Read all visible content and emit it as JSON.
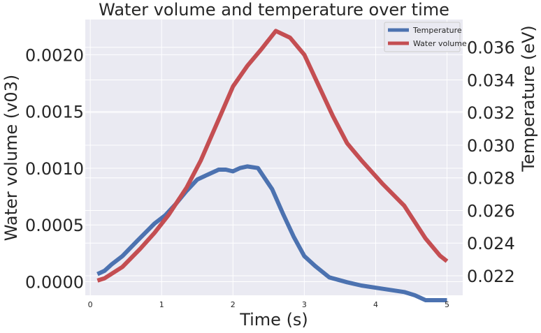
{
  "chart_data": {
    "type": "line",
    "title": "Water volume and temperature over time",
    "xlabel": "Time (s)",
    "ylabel_left": "Water volume (v03)",
    "ylabel_right": "Temperature (eV)",
    "xlim": [
      -0.07,
      5.22
    ],
    "ylim_left": [
      -0.00012,
      0.00231
    ],
    "ylim_right": [
      0.0208,
      0.0377
    ],
    "x_ticks": [
      0,
      1,
      2,
      3,
      4,
      5
    ],
    "x_tick_labels": [
      "0",
      "1",
      "2",
      "3",
      "4",
      "5"
    ],
    "y_left_ticks": [
      0.0,
      0.0005,
      0.001,
      0.0015,
      0.002
    ],
    "y_left_tick_labels": [
      "0.0000",
      "0.0005",
      "0.0010",
      "0.0015",
      "0.0020"
    ],
    "y_right_ticks": [
      0.022,
      0.024,
      0.026,
      0.028,
      0.03,
      0.032,
      0.034,
      0.036
    ],
    "y_right_tick_labels": [
      "0.022",
      "0.024",
      "0.026",
      "0.028",
      "0.030",
      "0.032",
      "0.034",
      "0.036"
    ],
    "grid": true,
    "legend_position": "top-right",
    "background_color": "#eaeaf2",
    "series": [
      {
        "name": "Temperature",
        "axis": "right",
        "color": "#4c72b0",
        "x": [
          0.1,
          0.2,
          0.3,
          0.45,
          0.65,
          0.9,
          1.05,
          1.2,
          1.35,
          1.5,
          1.65,
          1.8,
          1.9,
          2.0,
          2.1,
          2.2,
          2.35,
          2.55,
          2.7,
          2.85,
          3.0,
          3.15,
          3.35,
          3.6,
          3.8,
          4.1,
          4.4,
          4.55,
          4.7,
          5.0
        ],
        "values": [
          0.0221,
          0.0223,
          0.0227,
          0.0232,
          0.0241,
          0.0252,
          0.0257,
          0.0264,
          0.0272,
          0.0279,
          0.0282,
          0.0285,
          0.0285,
          0.0284,
          0.0286,
          0.0287,
          0.0286,
          0.0273,
          0.0258,
          0.0244,
          0.0232,
          0.0226,
          0.0219,
          0.0216,
          0.0214,
          0.0212,
          0.021,
          0.0208,
          0.0205,
          0.0205
        ]
      },
      {
        "name": "Water volume",
        "axis": "left",
        "color": "#c44e52",
        "x": [
          0.1,
          0.2,
          0.45,
          0.7,
          0.9,
          1.1,
          1.35,
          1.55,
          1.8,
          2.0,
          2.2,
          2.4,
          2.6,
          2.8,
          3.0,
          3.2,
          3.4,
          3.6,
          3.8,
          4.1,
          4.4,
          4.7,
          4.9,
          5.0
        ],
        "values": [
          1e-05,
          3e-05,
          0.00013,
          0.00029,
          0.00043,
          0.00059,
          0.00083,
          0.00107,
          0.00143,
          0.00172,
          0.0019,
          0.00205,
          0.00221,
          0.00215,
          0.002,
          0.00173,
          0.00146,
          0.00122,
          0.00107,
          0.00086,
          0.00067,
          0.00038,
          0.00023,
          0.00018
        ]
      }
    ]
  }
}
